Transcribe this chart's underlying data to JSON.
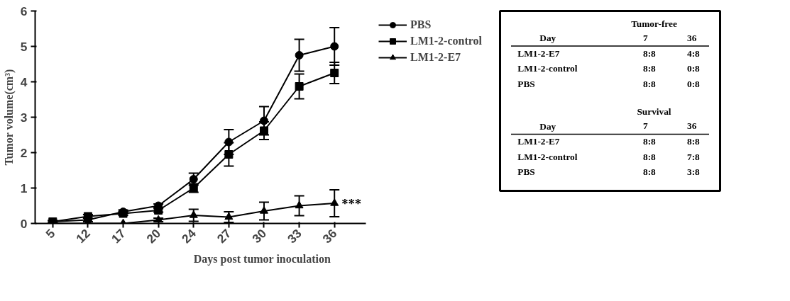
{
  "chart_data": [
    {
      "type": "line",
      "xlabel": "Days post tumor inoculation",
      "ylabel": "Tumor volume(cm³)",
      "categories": [
        "5",
        "12",
        "17",
        "20",
        "24",
        "27",
        "30",
        "33",
        "36"
      ],
      "series": [
        {
          "name": "PBS",
          "color": "#000000",
          "marker": "circle",
          "values": [
            0.05,
            0.1,
            0.33,
            0.5,
            1.25,
            2.3,
            2.9,
            4.75,
            5.0
          ],
          "errors": [
            0.03,
            0.05,
            0.05,
            0.05,
            0.17,
            0.35,
            0.4,
            0.45,
            0.53
          ]
        },
        {
          "name": "LM1-2-control",
          "color": "#000000",
          "marker": "square",
          "values": [
            0.05,
            0.2,
            0.28,
            0.37,
            1.0,
            1.95,
            2.62,
            3.87,
            4.25
          ],
          "errors": [
            0.03,
            0.05,
            0.05,
            0.05,
            0.12,
            0.33,
            0.25,
            0.35,
            0.3
          ]
        },
        {
          "name": "LM1-2-E7",
          "color": "#000000",
          "marker": "triangle",
          "values": [
            0,
            0,
            0,
            0.1,
            0.23,
            0.18,
            0.35,
            0.5,
            0.57
          ],
          "errors": [
            null,
            null,
            null,
            0.05,
            0.17,
            0.15,
            0.25,
            0.28,
            0.38
          ]
        }
      ],
      "ylim": [
        0,
        6
      ],
      "yticks": [
        0,
        1,
        2,
        3,
        4,
        5,
        6
      ],
      "grid": false,
      "legend": "right",
      "line_style": "solid",
      "annotations": [
        {
          "text": "***",
          "x": "36",
          "y": 0.57
        }
      ]
    },
    {
      "type": "other",
      "annotations": [
        "Tumor-free",
        "Day",
        "7",
        "36",
        "LM1-2-E7",
        "8:8",
        "4:8",
        "LM1-2-control",
        "8:8",
        "0:8",
        "PBS",
        "8:8",
        "0:8",
        "Survival",
        "Day",
        "7",
        "36",
        "LM1-2-E7",
        "8:8",
        "8:8",
        "LM1-2-control",
        "8:8",
        "7:8",
        "PBS",
        "8:8",
        "3:8"
      ]
    }
  ]
}
